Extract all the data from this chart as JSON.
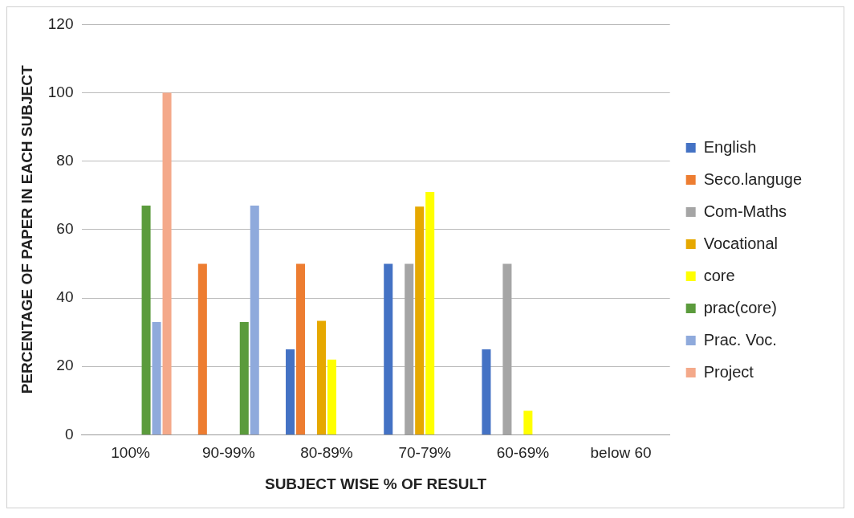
{
  "chart_data": {
    "type": "bar",
    "xlabel": "SUBJECT WISE % OF RESULT",
    "ylabel": "PERCENTAGE OF PAPER IN EACH SUBJECT",
    "categories": [
      "100%",
      "90-99%",
      "80-89%",
      "70-79%",
      "60-69%",
      "below 60"
    ],
    "series": [
      {
        "name": "English",
        "color": "#4472c4",
        "values": [
          null,
          null,
          25,
          50,
          25,
          null
        ]
      },
      {
        "name": "Seco.languge",
        "color": "#ed7d31",
        "values": [
          null,
          50,
          50,
          null,
          null,
          null
        ]
      },
      {
        "name": "Com-Maths",
        "color": "#a5a5a5",
        "values": [
          null,
          null,
          null,
          50,
          50,
          null
        ]
      },
      {
        "name": "Vocational",
        "color": "#e6a800",
        "values": [
          null,
          null,
          33.3,
          66.7,
          null,
          null
        ]
      },
      {
        "name": "core",
        "color": "#ffff00",
        "values": [
          null,
          null,
          22,
          71,
          7,
          null
        ]
      },
      {
        "name": "prac(core)",
        "color": "#5b9b3c",
        "values": [
          67,
          33,
          null,
          null,
          null,
          null
        ]
      },
      {
        "name": "Prac. Voc.",
        "color": "#8faadc",
        "values": [
          33,
          67,
          null,
          null,
          null,
          null
        ]
      },
      {
        "name": "Project",
        "color": "#f4a98a",
        "values": [
          100,
          null,
          null,
          null,
          null,
          null
        ]
      }
    ],
    "ylim": [
      0,
      120
    ],
    "yticks": [
      0,
      20,
      40,
      60,
      80,
      100,
      120
    ],
    "grid": "y",
    "legend": "right"
  }
}
